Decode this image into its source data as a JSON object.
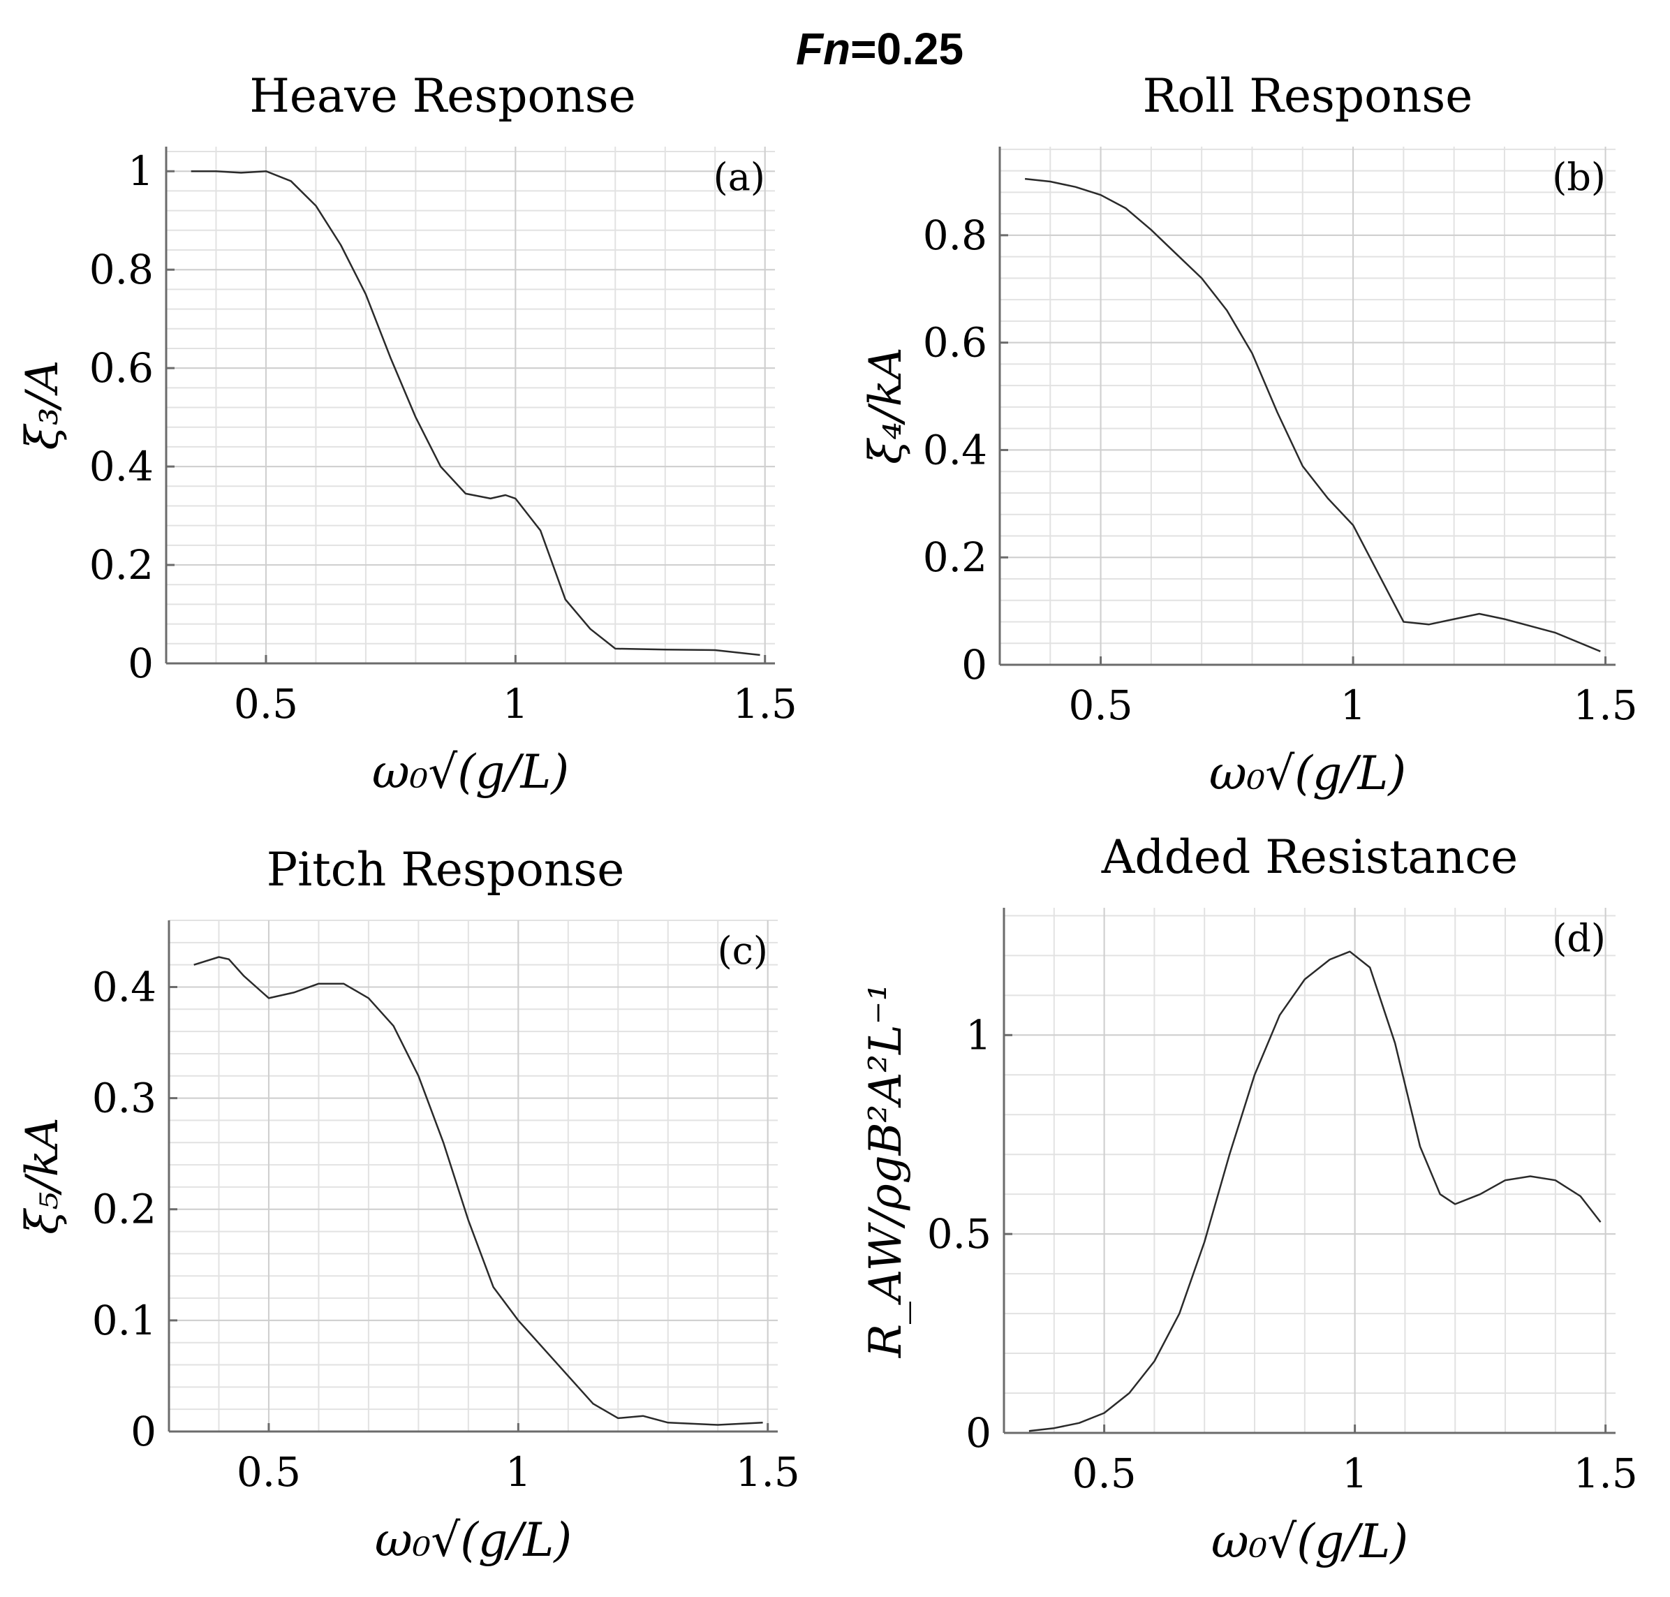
{
  "figure": {
    "title_italic": "Fn",
    "title_rest": "=0.25"
  },
  "chart_data": [
    {
      "id": "a",
      "type": "line",
      "title": "Heave Response",
      "panel_label": "(a)",
      "xlabel": "ω₀√(g/L)",
      "ylabel": "ξ₃/A",
      "xlim": [
        0.3,
        1.52
      ],
      "ylim": [
        0,
        1.05
      ],
      "xticks": [
        0.5,
        1,
        1.5
      ],
      "xtick_labels": [
        "0.5",
        "1",
        "1.5"
      ],
      "yticks": [
        0,
        0.2,
        0.4,
        0.6,
        0.8,
        1
      ],
      "ytick_labels": [
        "0",
        "0.2",
        "0.4",
        "0.6",
        "0.8",
        "1"
      ],
      "minor_x_step": 0.1,
      "minor_y_step": 0.04,
      "grid": true,
      "x": [
        0.35,
        0.4,
        0.45,
        0.5,
        0.55,
        0.6,
        0.65,
        0.7,
        0.75,
        0.8,
        0.85,
        0.9,
        0.95,
        0.98,
        1.0,
        1.05,
        1.1,
        1.15,
        1.2,
        1.3,
        1.4,
        1.49
      ],
      "y": [
        1.0,
        1.0,
        0.997,
        1.0,
        0.98,
        0.93,
        0.85,
        0.75,
        0.62,
        0.5,
        0.4,
        0.345,
        0.335,
        0.342,
        0.335,
        0.27,
        0.13,
        0.07,
        0.03,
        0.028,
        0.027,
        0.017
      ]
    },
    {
      "id": "b",
      "type": "line",
      "title": "Roll Response",
      "panel_label": "(b)",
      "xlabel": "ω₀√(g/L)",
      "ylabel": "ξ₄/kA",
      "xlim": [
        0.3,
        1.52
      ],
      "ylim": [
        0,
        0.965
      ],
      "xticks": [
        0.5,
        1,
        1.5
      ],
      "xtick_labels": [
        "0.5",
        "1",
        "1.5"
      ],
      "yticks": [
        0,
        0.2,
        0.4,
        0.6,
        0.8
      ],
      "ytick_labels": [
        "0",
        "0.2",
        "0.4",
        "0.6",
        "0.8"
      ],
      "minor_x_step": 0.1,
      "minor_y_step": 0.04,
      "grid": true,
      "x": [
        0.35,
        0.4,
        0.45,
        0.5,
        0.55,
        0.6,
        0.65,
        0.7,
        0.75,
        0.8,
        0.85,
        0.9,
        0.95,
        1.0,
        1.05,
        1.1,
        1.15,
        1.2,
        1.25,
        1.3,
        1.4,
        1.49
      ],
      "y": [
        0.905,
        0.9,
        0.89,
        0.875,
        0.85,
        0.81,
        0.765,
        0.72,
        0.66,
        0.58,
        0.47,
        0.37,
        0.31,
        0.26,
        0.17,
        0.08,
        0.075,
        0.085,
        0.095,
        0.085,
        0.06,
        0.025
      ]
    },
    {
      "id": "c",
      "type": "line",
      "title": "Pitch Response",
      "panel_label": "(c)",
      "xlabel": "ω₀√(g/L)",
      "ylabel": "ξ₅/kA",
      "xlim": [
        0.3,
        1.52
      ],
      "ylim": [
        0,
        0.46
      ],
      "xticks": [
        0.5,
        1,
        1.5
      ],
      "xtick_labels": [
        "0.5",
        "1",
        "1.5"
      ],
      "yticks": [
        0,
        0.1,
        0.2,
        0.3,
        0.4
      ],
      "ytick_labels": [
        "0",
        "0.1",
        "0.2",
        "0.3",
        "0.4"
      ],
      "minor_x_step": 0.1,
      "minor_y_step": 0.02,
      "grid": true,
      "x": [
        0.35,
        0.4,
        0.42,
        0.45,
        0.5,
        0.55,
        0.6,
        0.65,
        0.7,
        0.75,
        0.8,
        0.85,
        0.9,
        0.95,
        1.0,
        1.05,
        1.1,
        1.15,
        1.2,
        1.25,
        1.3,
        1.4,
        1.49
      ],
      "y": [
        0.42,
        0.427,
        0.425,
        0.41,
        0.39,
        0.395,
        0.403,
        0.403,
        0.39,
        0.365,
        0.32,
        0.26,
        0.19,
        0.13,
        0.1,
        0.075,
        0.05,
        0.025,
        0.012,
        0.014,
        0.008,
        0.006,
        0.008
      ]
    },
    {
      "id": "d",
      "type": "line",
      "title": "Added Resistance",
      "panel_label": "(d)",
      "xlabel": "ω₀√(g/L)",
      "ylabel": "R_AW/ρgB²A²L⁻¹",
      "xlim": [
        0.3,
        1.52
      ],
      "ylim": [
        0,
        1.32
      ],
      "xticks": [
        0.5,
        1,
        1.5
      ],
      "xtick_labels": [
        "0.5",
        "1",
        "1.5"
      ],
      "yticks": [
        0,
        0.5,
        1
      ],
      "ytick_labels": [
        "0",
        "0.5",
        "1"
      ],
      "minor_x_step": 0.1,
      "minor_y_step": 0.1,
      "grid": true,
      "x": [
        0.35,
        0.4,
        0.45,
        0.5,
        0.55,
        0.6,
        0.65,
        0.7,
        0.75,
        0.8,
        0.85,
        0.9,
        0.95,
        0.99,
        1.03,
        1.08,
        1.13,
        1.17,
        1.2,
        1.25,
        1.3,
        1.35,
        1.4,
        1.45,
        1.49
      ],
      "y": [
        0.005,
        0.012,
        0.025,
        0.05,
        0.1,
        0.18,
        0.3,
        0.48,
        0.7,
        0.9,
        1.05,
        1.14,
        1.19,
        1.21,
        1.17,
        0.98,
        0.72,
        0.6,
        0.575,
        0.6,
        0.635,
        0.645,
        0.635,
        0.595,
        0.53
      ]
    }
  ]
}
